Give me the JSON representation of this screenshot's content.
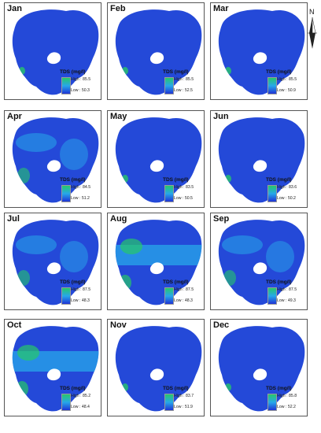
{
  "legend_title": "TDS (mg/l)",
  "north_label": "N",
  "colors": {
    "high": "#27c76a",
    "mid": "#27a7ea",
    "low": "#1f34d6",
    "water": "#2449d8"
  },
  "panels": [
    {
      "month": "Jan",
      "high": "High : 85.5",
      "low": "Low : 50.3",
      "pattern": "uniform"
    },
    {
      "month": "Feb",
      "high": "High : 85.5",
      "low": "Low : 52.5",
      "pattern": "uniform"
    },
    {
      "month": "Mar",
      "high": "High : 85.5",
      "low": "Low : 50.9",
      "pattern": "uniform"
    },
    {
      "month": "Apr",
      "high": "High : 84.5",
      "low": "Low : 51.2",
      "pattern": "mixed"
    },
    {
      "month": "May",
      "high": "High : 83.5",
      "low": "Low : 50.5",
      "pattern": "uniform"
    },
    {
      "month": "Jun",
      "high": "High : 83.6",
      "low": "Low : 50.2",
      "pattern": "uniform"
    },
    {
      "month": "Jul",
      "high": "High : 87.5",
      "low": "Low : 48.3",
      "pattern": "mixed"
    },
    {
      "month": "Aug",
      "high": "High : 87.5",
      "low": "Low : 48.3",
      "pattern": "high"
    },
    {
      "month": "Sep",
      "high": "High : 87.5",
      "low": "Low : 49.3",
      "pattern": "mixed"
    },
    {
      "month": "Oct",
      "high": "High : 85.2",
      "low": "Low : 48.4",
      "pattern": "high"
    },
    {
      "month": "Nov",
      "high": "High : 83.7",
      "low": "Low : 51.9",
      "pattern": "uniform"
    },
    {
      "month": "Dec",
      "high": "High : 85.8",
      "low": "Low : 52.2",
      "pattern": "uniform"
    }
  ]
}
